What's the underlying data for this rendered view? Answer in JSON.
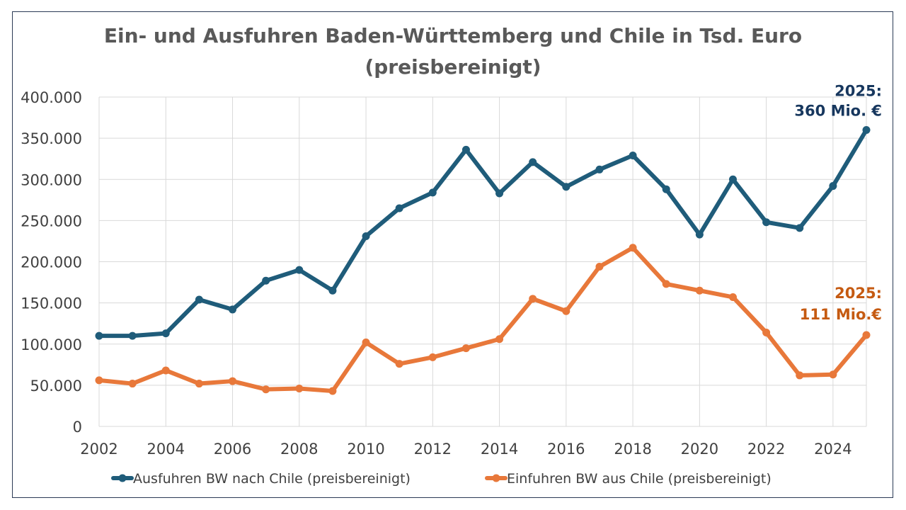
{
  "chart_data": {
    "type": "line",
    "title_line1": "Ein- und Ausfuhren Baden-Württemberg und Chile in Tsd. Euro",
    "title_line2": "(preisbereinigt)",
    "x": [
      2002,
      2003,
      2004,
      2005,
      2006,
      2007,
      2008,
      2009,
      2010,
      2011,
      2012,
      2013,
      2014,
      2015,
      2016,
      2017,
      2018,
      2019,
      2020,
      2021,
      2022,
      2023,
      2024,
      2025
    ],
    "x_tick_labels": [
      "2002",
      "2004",
      "2006",
      "2008",
      "2010",
      "2012",
      "2014",
      "2016",
      "2018",
      "2020",
      "2022",
      "2024"
    ],
    "ylim": [
      0,
      400000
    ],
    "y_tick_labels": [
      "0",
      "50.000",
      "100.000",
      "150.000",
      "200.000",
      "250.000",
      "300.000",
      "350.000",
      "400.000"
    ],
    "grid": true,
    "legend_position": "bottom",
    "series": [
      {
        "name": "Ausfuhren BW nach Chile (preisbereinigt)",
        "color": "#1f5c7a",
        "values": [
          110000,
          110000,
          113000,
          154000,
          142000,
          177000,
          190000,
          165000,
          231000,
          265000,
          284000,
          336000,
          283000,
          321000,
          291000,
          312000,
          329000,
          288000,
          233000,
          300000,
          248000,
          241000,
          292000,
          360000
        ]
      },
      {
        "name": "Einfuhren BW aus Chile (preisbereinigt)",
        "color": "#e8783a",
        "values": [
          56000,
          52000,
          68000,
          52000,
          55000,
          45000,
          46000,
          43000,
          102000,
          76000,
          84000,
          95000,
          106000,
          155000,
          140000,
          194000,
          217000,
          173000,
          165000,
          157000,
          114000,
          62000,
          63000,
          111000
        ]
      }
    ],
    "annotations": [
      {
        "series_index": 0,
        "line1": "2025:",
        "line2": "360 Mio. €"
      },
      {
        "series_index": 1,
        "line1": "2025:",
        "line2": "111 Mio.€"
      }
    ]
  }
}
